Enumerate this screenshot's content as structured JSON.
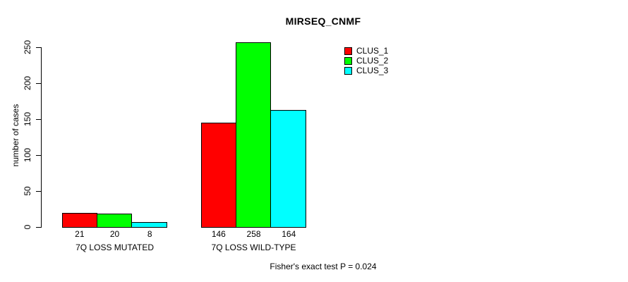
{
  "page": {
    "background_color": "#ffffff",
    "text_color": "#000000",
    "axis_color": "#000000"
  },
  "chart_data": {
    "type": "bar",
    "title": "MIRSEQ_CNMF",
    "xlabel": "",
    "ylabel": "number of cases",
    "ylim": [
      0,
      258
    ],
    "yticks": [
      0,
      50,
      100,
      150,
      200,
      250
    ],
    "grid": false,
    "legend_position": "top-right",
    "legend_border": false,
    "categories": [
      "7Q LOSS MUTATED",
      "7Q LOSS WILD-TYPE"
    ],
    "series": [
      {
        "name": "CLUS_1",
        "color": "#ff0000",
        "values": [
          21,
          146
        ]
      },
      {
        "name": "CLUS_2",
        "color": "#00ff00",
        "values": [
          20,
          258
        ]
      },
      {
        "name": "CLUS_3",
        "color": "#00ffff",
        "values": [
          8,
          164
        ]
      }
    ],
    "bar_value_labels_shown": true,
    "footnote": "Fisher's exact test P = 0.024"
  }
}
